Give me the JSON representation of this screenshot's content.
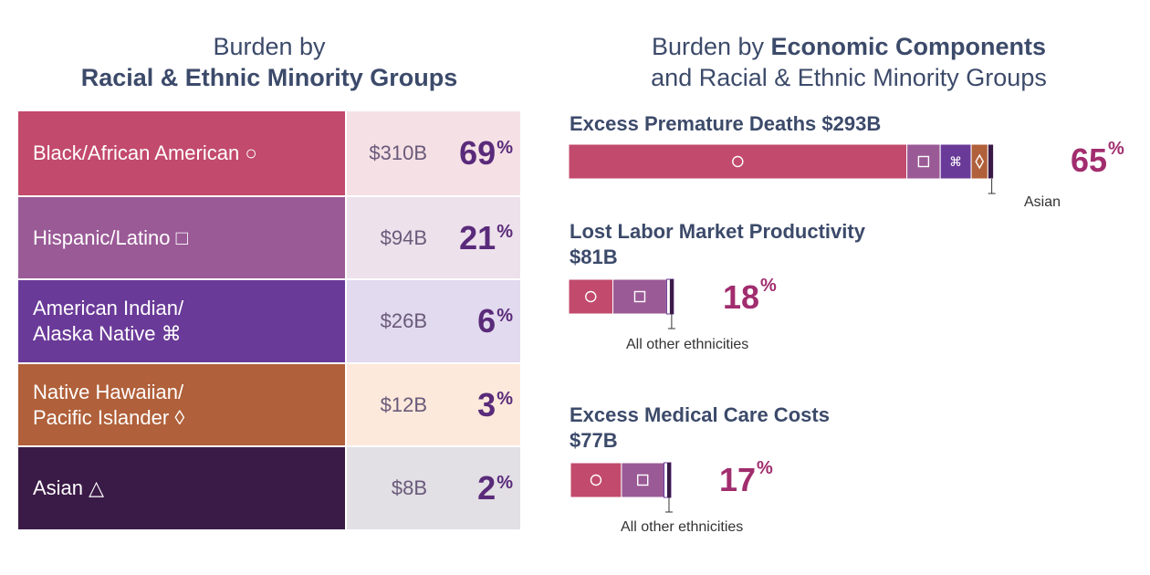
{
  "left_title": {
    "line1": "Burden by",
    "line2": "Racial & Ethnic Minority Groups"
  },
  "right_title": {
    "prefix": "Burden by ",
    "bold": "Economic Components",
    "line2": "and Racial & Ethnic Minority Groups"
  },
  "colors": {
    "black": "#c24a6c",
    "hispanic": "#9a5a96",
    "aian": "#6a3a98",
    "nhpi": "#b0603a",
    "asian": "#3a1a46",
    "other": "#ffffff",
    "accent": "#a12d6e",
    "title": "#3c4a6a"
  },
  "chart_data": [
    {
      "type": "table",
      "title": "Burden by Racial & Ethnic Minority Groups",
      "rows": [
        {
          "line1": "Black/African American",
          "line2": "",
          "symbol": "○",
          "amount": "$310B",
          "pct": "69",
          "pct_sign": "%",
          "color": "#c24a6c",
          "tint": "#f5e1e5"
        },
        {
          "line1": "Hispanic/Latino",
          "line2": "",
          "symbol": "□",
          "amount": "$94B",
          "pct": "21",
          "pct_sign": "%",
          "color": "#9a5a96",
          "tint": "#ede1ec"
        },
        {
          "line1": "American Indian/",
          "line2": "Alaska Native",
          "symbol": "⌘",
          "amount": "$26B",
          "pct": "6",
          "pct_sign": "%",
          "color": "#6a3a98",
          "tint": "#e2daee"
        },
        {
          "line1": "Native Hawaiian/",
          "line2": "Pacific Islander",
          "symbol": "◊",
          "amount": "$12B",
          "pct": "3",
          "pct_sign": "%",
          "color": "#b0603a",
          "tint": "#fce9db"
        },
        {
          "line1": "Asian",
          "line2": "",
          "symbol": "△",
          "amount": "$8B",
          "pct": "2",
          "pct_sign": "%",
          "color": "#3a1a46",
          "tint": "#e2dfe5"
        }
      ]
    },
    {
      "type": "bar",
      "title": "Burden by Economic Components and Racial & Ethnic Minority Groups",
      "orientation": "horizontal-stacked",
      "components": [
        {
          "name": "Excess Premature Deaths",
          "total": "$293B",
          "pct": "65",
          "pct_sign": "%",
          "annotation": "Asian",
          "segments": [
            {
              "group": "Black/African American",
              "share": 0.71,
              "symbol": "○"
            },
            {
              "group": "Hispanic/Latino",
              "share": 0.07,
              "symbol": "□"
            },
            {
              "group": "American Indian/Alaska Native",
              "share": 0.065,
              "symbol": "⌘"
            },
            {
              "group": "Native Hawaiian/Pacific Islander",
              "share": 0.035,
              "symbol": "◊"
            },
            {
              "group": "Asian",
              "share": 0.012,
              "symbol": ""
            }
          ]
        },
        {
          "name": "Lost Labor Market Productivity",
          "total": "$81B",
          "pct": "18",
          "pct_sign": "%",
          "annotation": "All other ethnicities",
          "segments": [
            {
              "group": "Black/African American",
              "share": 0.0929,
              "symbol": "○"
            },
            {
              "group": "Hispanic/Latino",
              "share": 0.1129,
              "symbol": "□"
            },
            {
              "group": "All other ethnicities",
              "share": 0.0143,
              "symbol": ""
            }
          ]
        },
        {
          "name": "Excess Medical Care Costs",
          "total": "$77B",
          "pct": "17",
          "pct_sign": "%",
          "annotation": "All other ethnicities",
          "segments": [
            {
              "group": "Black/African American",
              "share": 0.1071,
              "symbol": "○"
            },
            {
              "group": "Hispanic/Latino",
              "share": 0.0893,
              "symbol": "□"
            },
            {
              "group": "All other ethnicities",
              "share": 0.0143,
              "symbol": ""
            }
          ]
        }
      ]
    }
  ]
}
